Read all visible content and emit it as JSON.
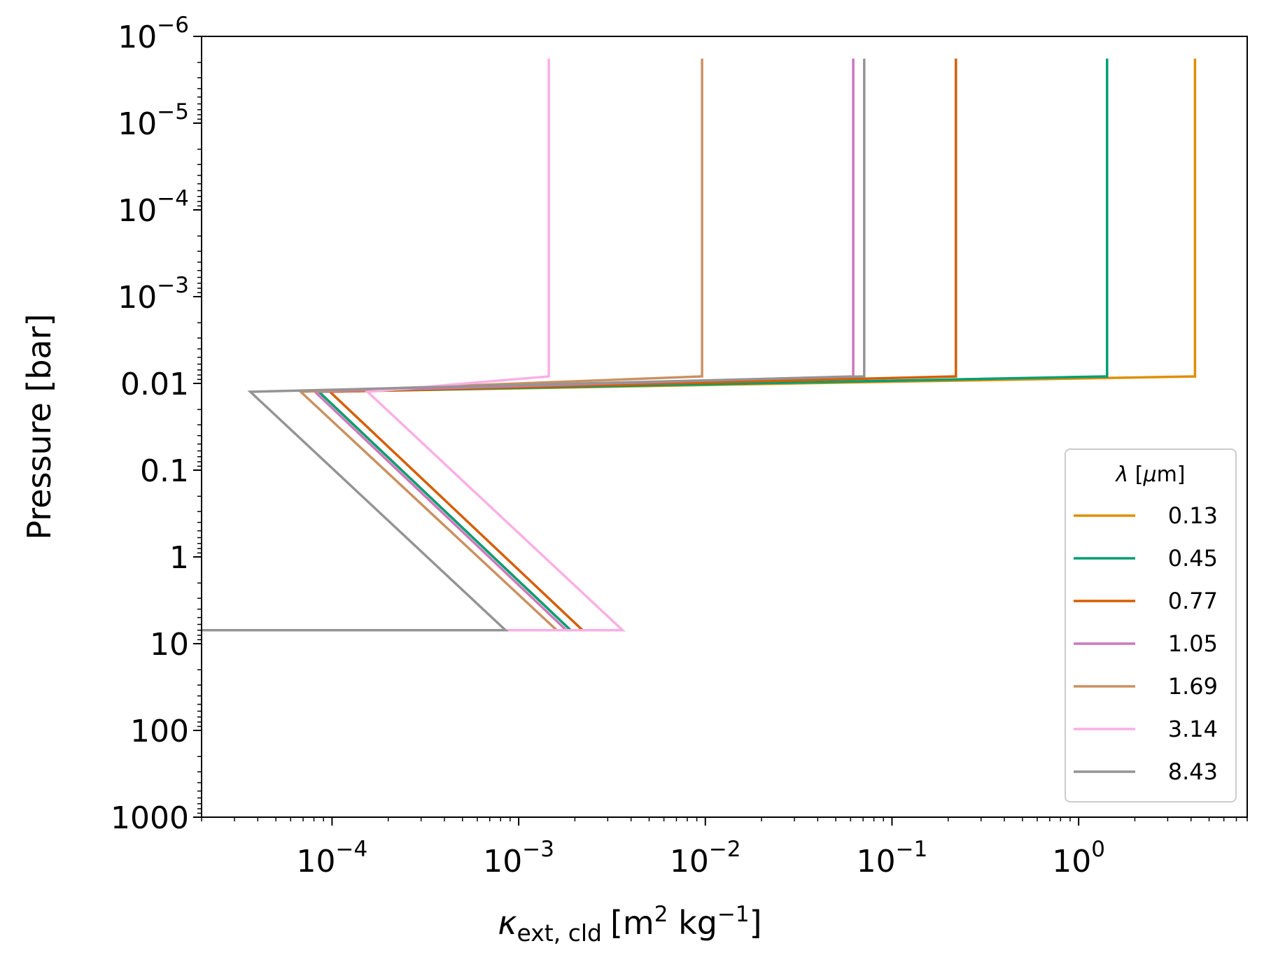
{
  "chart_data": {
    "type": "line",
    "xscale": "log",
    "yscale": "log",
    "y_inverted": true,
    "xlim": [
      2e-05,
      8
    ],
    "ylim": [
      1000,
      1e-06
    ],
    "xlabel_symbol": "κ",
    "xlabel_sub": "ext, cld",
    "xlabel_unit_open": "[m",
    "xlabel_unit_sup1": "2",
    "xlabel_unit_mid": " kg",
    "xlabel_unit_sup2": "−1",
    "xlabel_unit_close": "]",
    "ylabel": "Pressure [bar]",
    "x_ticks": [
      {
        "value": 0.0001,
        "base": "10",
        "exp": "−4"
      },
      {
        "value": 0.001,
        "base": "10",
        "exp": "−3"
      },
      {
        "value": 0.01,
        "base": "10",
        "exp": "−2"
      },
      {
        "value": 0.1,
        "base": "10",
        "exp": "−1"
      },
      {
        "value": 1,
        "base": "10",
        "exp": "0"
      }
    ],
    "y_ticks": [
      {
        "value": 1e-06,
        "base": "10",
        "exp": "−6"
      },
      {
        "value": 1e-05,
        "base": "10",
        "exp": "−5"
      },
      {
        "value": 0.0001,
        "base": "10",
        "exp": "−4"
      },
      {
        "value": 0.001,
        "base": "10",
        "exp": "−3"
      },
      {
        "value": 0.01,
        "label": "0.01"
      },
      {
        "value": 0.1,
        "label": "0.1"
      },
      {
        "value": 1,
        "label": "1"
      },
      {
        "value": 10,
        "label": "10"
      },
      {
        "value": 100,
        "label": "100"
      },
      {
        "value": 1000,
        "label": "1000"
      }
    ],
    "legend": {
      "title_symbol": "λ",
      "title_unit_open": " [",
      "title_mu": "μ",
      "title_unit_close": "m]",
      "position": "center-right"
    },
    "series": [
      {
        "name": "0.13",
        "color": "#de8f05",
        "points": [
          [
            4.2,
            1.8e-06
          ],
          [
            4.2,
            0.0083
          ],
          [
            8.5e-05,
            0.0125
          ],
          [
            0.0019,
            7.0
          ],
          [
            0.0019,
            7.0
          ]
        ]
      },
      {
        "name": "0.45",
        "color": "#029e73",
        "points": [
          [
            1.42,
            1.8e-06
          ],
          [
            1.42,
            0.0083
          ],
          [
            8.5e-05,
            0.0125
          ],
          [
            0.0019,
            7.0
          ],
          [
            0.0019,
            7.0
          ]
        ]
      },
      {
        "name": "0.77",
        "color": "#d55e00",
        "points": [
          [
            0.22,
            1.8e-06
          ],
          [
            0.22,
            0.0083
          ],
          [
            9.75e-05,
            0.0125
          ],
          [
            0.0022,
            7.0
          ],
          [
            0.0022,
            7.0
          ]
        ]
      },
      {
        "name": "1.05",
        "color": "#cc78bc",
        "points": [
          [
            0.062,
            1.8e-06
          ],
          [
            0.062,
            0.0083
          ],
          [
            8.1e-05,
            0.0125
          ],
          [
            0.0018,
            7.0
          ],
          [
            0.0018,
            7.0
          ]
        ]
      },
      {
        "name": "1.69",
        "color": "#ca9161",
        "points": [
          [
            0.0096,
            1.8e-06
          ],
          [
            0.0096,
            0.0083
          ],
          [
            6.8e-05,
            0.0125
          ],
          [
            0.0016,
            7.0
          ],
          [
            0.0016,
            7.0
          ]
        ]
      },
      {
        "name": "3.14",
        "color": "#fbafe4",
        "points": [
          [
            0.00145,
            1.8e-06
          ],
          [
            0.00145,
            0.0083
          ],
          [
            0.000155,
            0.0125
          ],
          [
            0.0036,
            7.0
          ],
          [
            0.00085,
            7.0
          ]
        ]
      },
      {
        "name": "8.43",
        "color": "#949494",
        "points": [
          [
            0.071,
            1.8e-06
          ],
          [
            0.071,
            0.0083
          ],
          [
            3.65e-05,
            0.0125
          ],
          [
            0.00085,
            7.0
          ],
          [
            2e-05,
            7.0
          ]
        ]
      }
    ]
  }
}
